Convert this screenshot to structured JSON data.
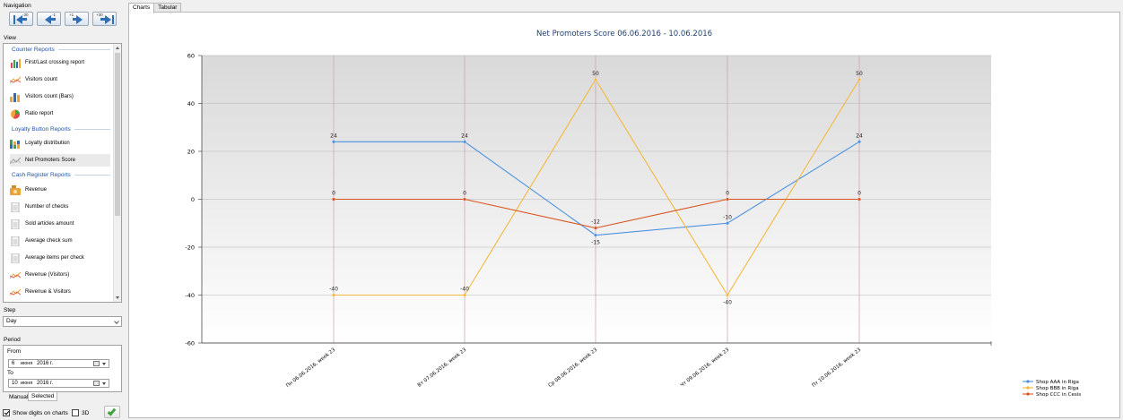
{
  "navigation": {
    "label": "Navigation",
    "buttons": [
      {
        "name": "back-30",
        "sup": "-30"
      },
      {
        "name": "back-1",
        "sup": "-1"
      },
      {
        "name": "forward-1",
        "sup": "+1"
      },
      {
        "name": "forward-30",
        "sup": "+30"
      }
    ]
  },
  "view": {
    "label": "View",
    "groups": [
      {
        "title": "Counter Reports",
        "items": [
          {
            "label": "First/Last crossing report",
            "icon": "bar-chart-color-icon"
          },
          {
            "label": "Visitors count",
            "icon": "line-chart-icon"
          },
          {
            "label": "Visitors count (Bars)",
            "icon": "bar-chart-icon"
          },
          {
            "label": "Ratio report",
            "icon": "pie-chart-icon"
          }
        ]
      },
      {
        "title": "Loyalty Button Reports",
        "items": [
          {
            "label": "Loyalty distribution",
            "icon": "stacked-bar-icon"
          },
          {
            "label": "Net Promoters Score",
            "icon": "line-chart-icon",
            "selected": true
          }
        ]
      },
      {
        "title": "Cash Register Reports",
        "items": [
          {
            "label": "Revenue",
            "icon": "money-icon"
          },
          {
            "label": "Number of checks",
            "icon": "document-icon"
          },
          {
            "label": "Sold articles amount",
            "icon": "document-icon"
          },
          {
            "label": "Average check sum",
            "icon": "document-icon"
          },
          {
            "label": "Average items per check",
            "icon": "document-icon"
          },
          {
            "label": "Revenue (Visitors)",
            "icon": "line-chart-icon"
          },
          {
            "label": "Revenue & Visitors",
            "icon": "line-chart-icon"
          }
        ]
      }
    ]
  },
  "step": {
    "label": "Step",
    "value": "Day"
  },
  "period": {
    "label": "Period",
    "from_label": "From",
    "to_label": "To",
    "from": {
      "day": "6",
      "month": "июня",
      "year": "2016 г."
    },
    "to": {
      "day": "10",
      "month": "июня",
      "year": "2016 г."
    },
    "tabs": [
      "Manual",
      "Selected"
    ]
  },
  "options": {
    "show_digits_label": "Show digits on charts",
    "show_digits_checked": true,
    "three_d_label": "3D",
    "three_d_checked": false
  },
  "main_tabs": [
    "Charts",
    "Tabular"
  ],
  "colors": {
    "accent": "#1f55a3",
    "series_a": "#4a90e2",
    "series_b": "#f5b83d",
    "series_c": "#d9541e"
  },
  "chart_data": {
    "type": "line",
    "title": "Net Promoters Score 06.06.2016 - 10.06.2016",
    "categories": [
      "Пн 06.06.2016, week 23",
      "Вт 07.06.2016, week 23",
      "Ср 08.06.2016, week 23",
      "Чт 09.06.2016, week 23",
      "Пт 10.06.2016, week 23"
    ],
    "ylim": [
      -60,
      60
    ],
    "yticks": [
      -60,
      -40,
      -20,
      0,
      20,
      40,
      60
    ],
    "grid": true,
    "legend_position": "bottom-right",
    "series": [
      {
        "name": "Shop AAA in Riga",
        "color": "#4a90e2",
        "values": [
          24,
          24,
          -15,
          -10,
          24
        ]
      },
      {
        "name": "Shop BBB in Riga",
        "color": "#f5b83d",
        "values": [
          -40,
          -40,
          50,
          -40,
          50
        ]
      },
      {
        "name": "Shop CCC in Cesis",
        "color": "#d9541e",
        "values": [
          0,
          0,
          -12,
          0,
          0
        ]
      }
    ]
  }
}
